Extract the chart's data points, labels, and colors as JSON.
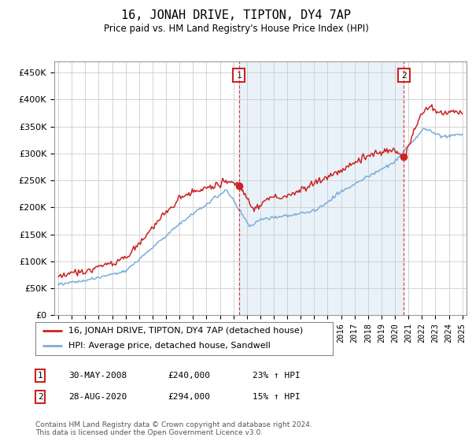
{
  "title": "16, JONAH DRIVE, TIPTON, DY4 7AP",
  "subtitle": "Price paid vs. HM Land Registry's House Price Index (HPI)",
  "ylabel_ticks": [
    "£0",
    "£50K",
    "£100K",
    "£150K",
    "£200K",
    "£250K",
    "£300K",
    "£350K",
    "£400K",
    "£450K"
  ],
  "ytick_values": [
    0,
    50000,
    100000,
    150000,
    200000,
    250000,
    300000,
    350000,
    400000,
    450000
  ],
  "ylim": [
    0,
    470000
  ],
  "hpi_color": "#7aaddc",
  "price_color": "#cc2222",
  "marker1_x": 2008.41,
  "marker1_y": 240000,
  "marker2_x": 2020.66,
  "marker2_y": 294000,
  "vline1_x": 2008.41,
  "vline2_x": 2020.66,
  "legend_label1": "16, JONAH DRIVE, TIPTON, DY4 7AP (detached house)",
  "legend_label2": "HPI: Average price, detached house, Sandwell",
  "table_row1": [
    "1",
    "30-MAY-2008",
    "£240,000",
    "23% ↑ HPI"
  ],
  "table_row2": [
    "2",
    "28-AUG-2020",
    "£294,000",
    "15% ↑ HPI"
  ],
  "footnote": "Contains HM Land Registry data © Crown copyright and database right 2024.\nThis data is licensed under the Open Government Licence v3.0.",
  "xlim_start": 1994.7,
  "xlim_end": 2025.3,
  "background_color": "#e8f0f8",
  "chart_bg": "#ffffff",
  "noise_scale_hpi": 1500,
  "noise_scale_price": 3000
}
